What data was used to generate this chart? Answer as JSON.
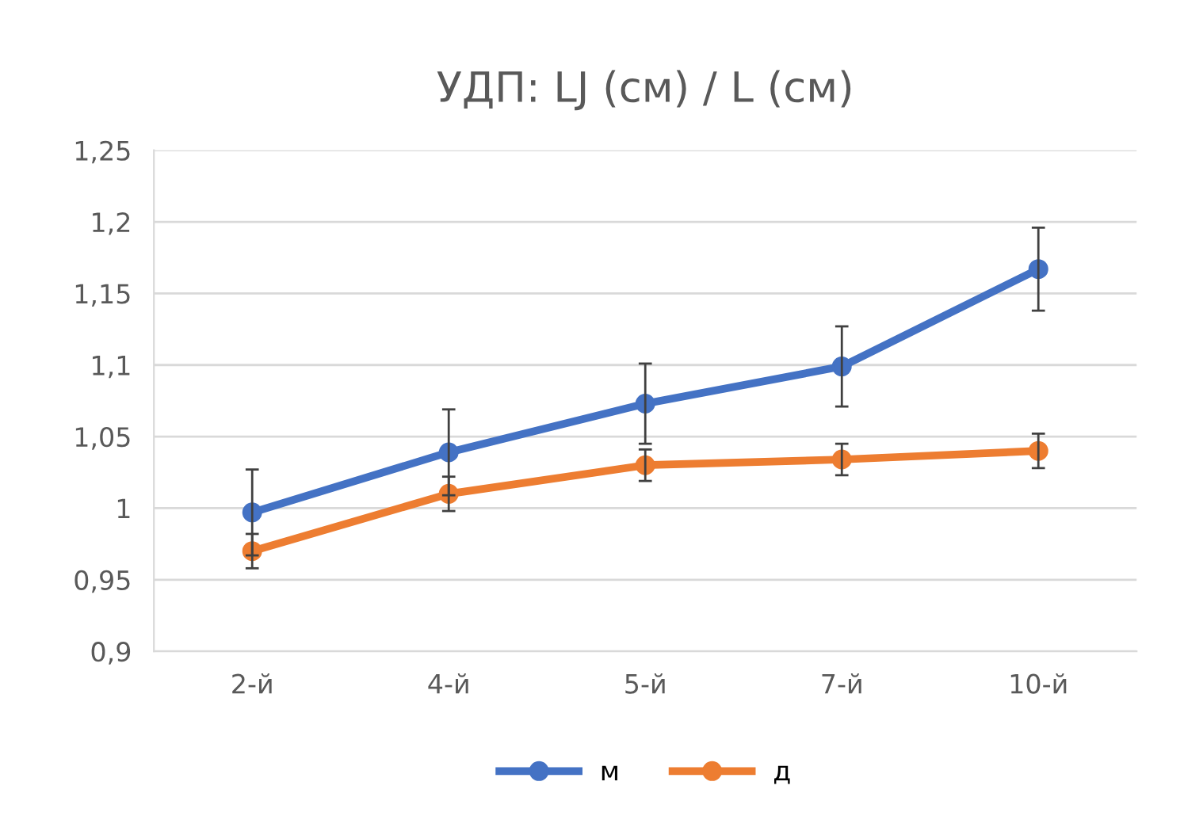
{
  "chart_data": {
    "type": "line",
    "title": "УДП: LJ (см) / L (см)",
    "categories": [
      "2-й",
      "4-й",
      "5-й",
      "7-й",
      "10-й"
    ],
    "series": [
      {
        "name": "м",
        "color": "#4472c4",
        "values": [
          0.997,
          1.039,
          1.073,
          1.099,
          1.167
        ],
        "errors": [
          0.03,
          0.03,
          0.028,
          0.028,
          0.029
        ]
      },
      {
        "name": "д",
        "color": "#ed7d31",
        "values": [
          0.97,
          1.01,
          1.03,
          1.034,
          1.04
        ],
        "errors": [
          0.012,
          0.012,
          0.011,
          0.011,
          0.012
        ]
      }
    ],
    "ylim": [
      0.9,
      1.25
    ],
    "yticks": [
      {
        "value": 0.9,
        "label": "0,9"
      },
      {
        "value": 0.95,
        "label": "0,95"
      },
      {
        "value": 1,
        "label": "1"
      },
      {
        "value": 1.05,
        "label": "1,05"
      },
      {
        "value": 1.1,
        "label": "1,1"
      },
      {
        "value": 1.15,
        "label": "1,15"
      },
      {
        "value": 1.2,
        "label": "1,2"
      },
      {
        "value": 1.25,
        "label": "1,25"
      }
    ],
    "grid": "y",
    "legend": "bottom",
    "marker": "circle",
    "line_style": "solid"
  }
}
